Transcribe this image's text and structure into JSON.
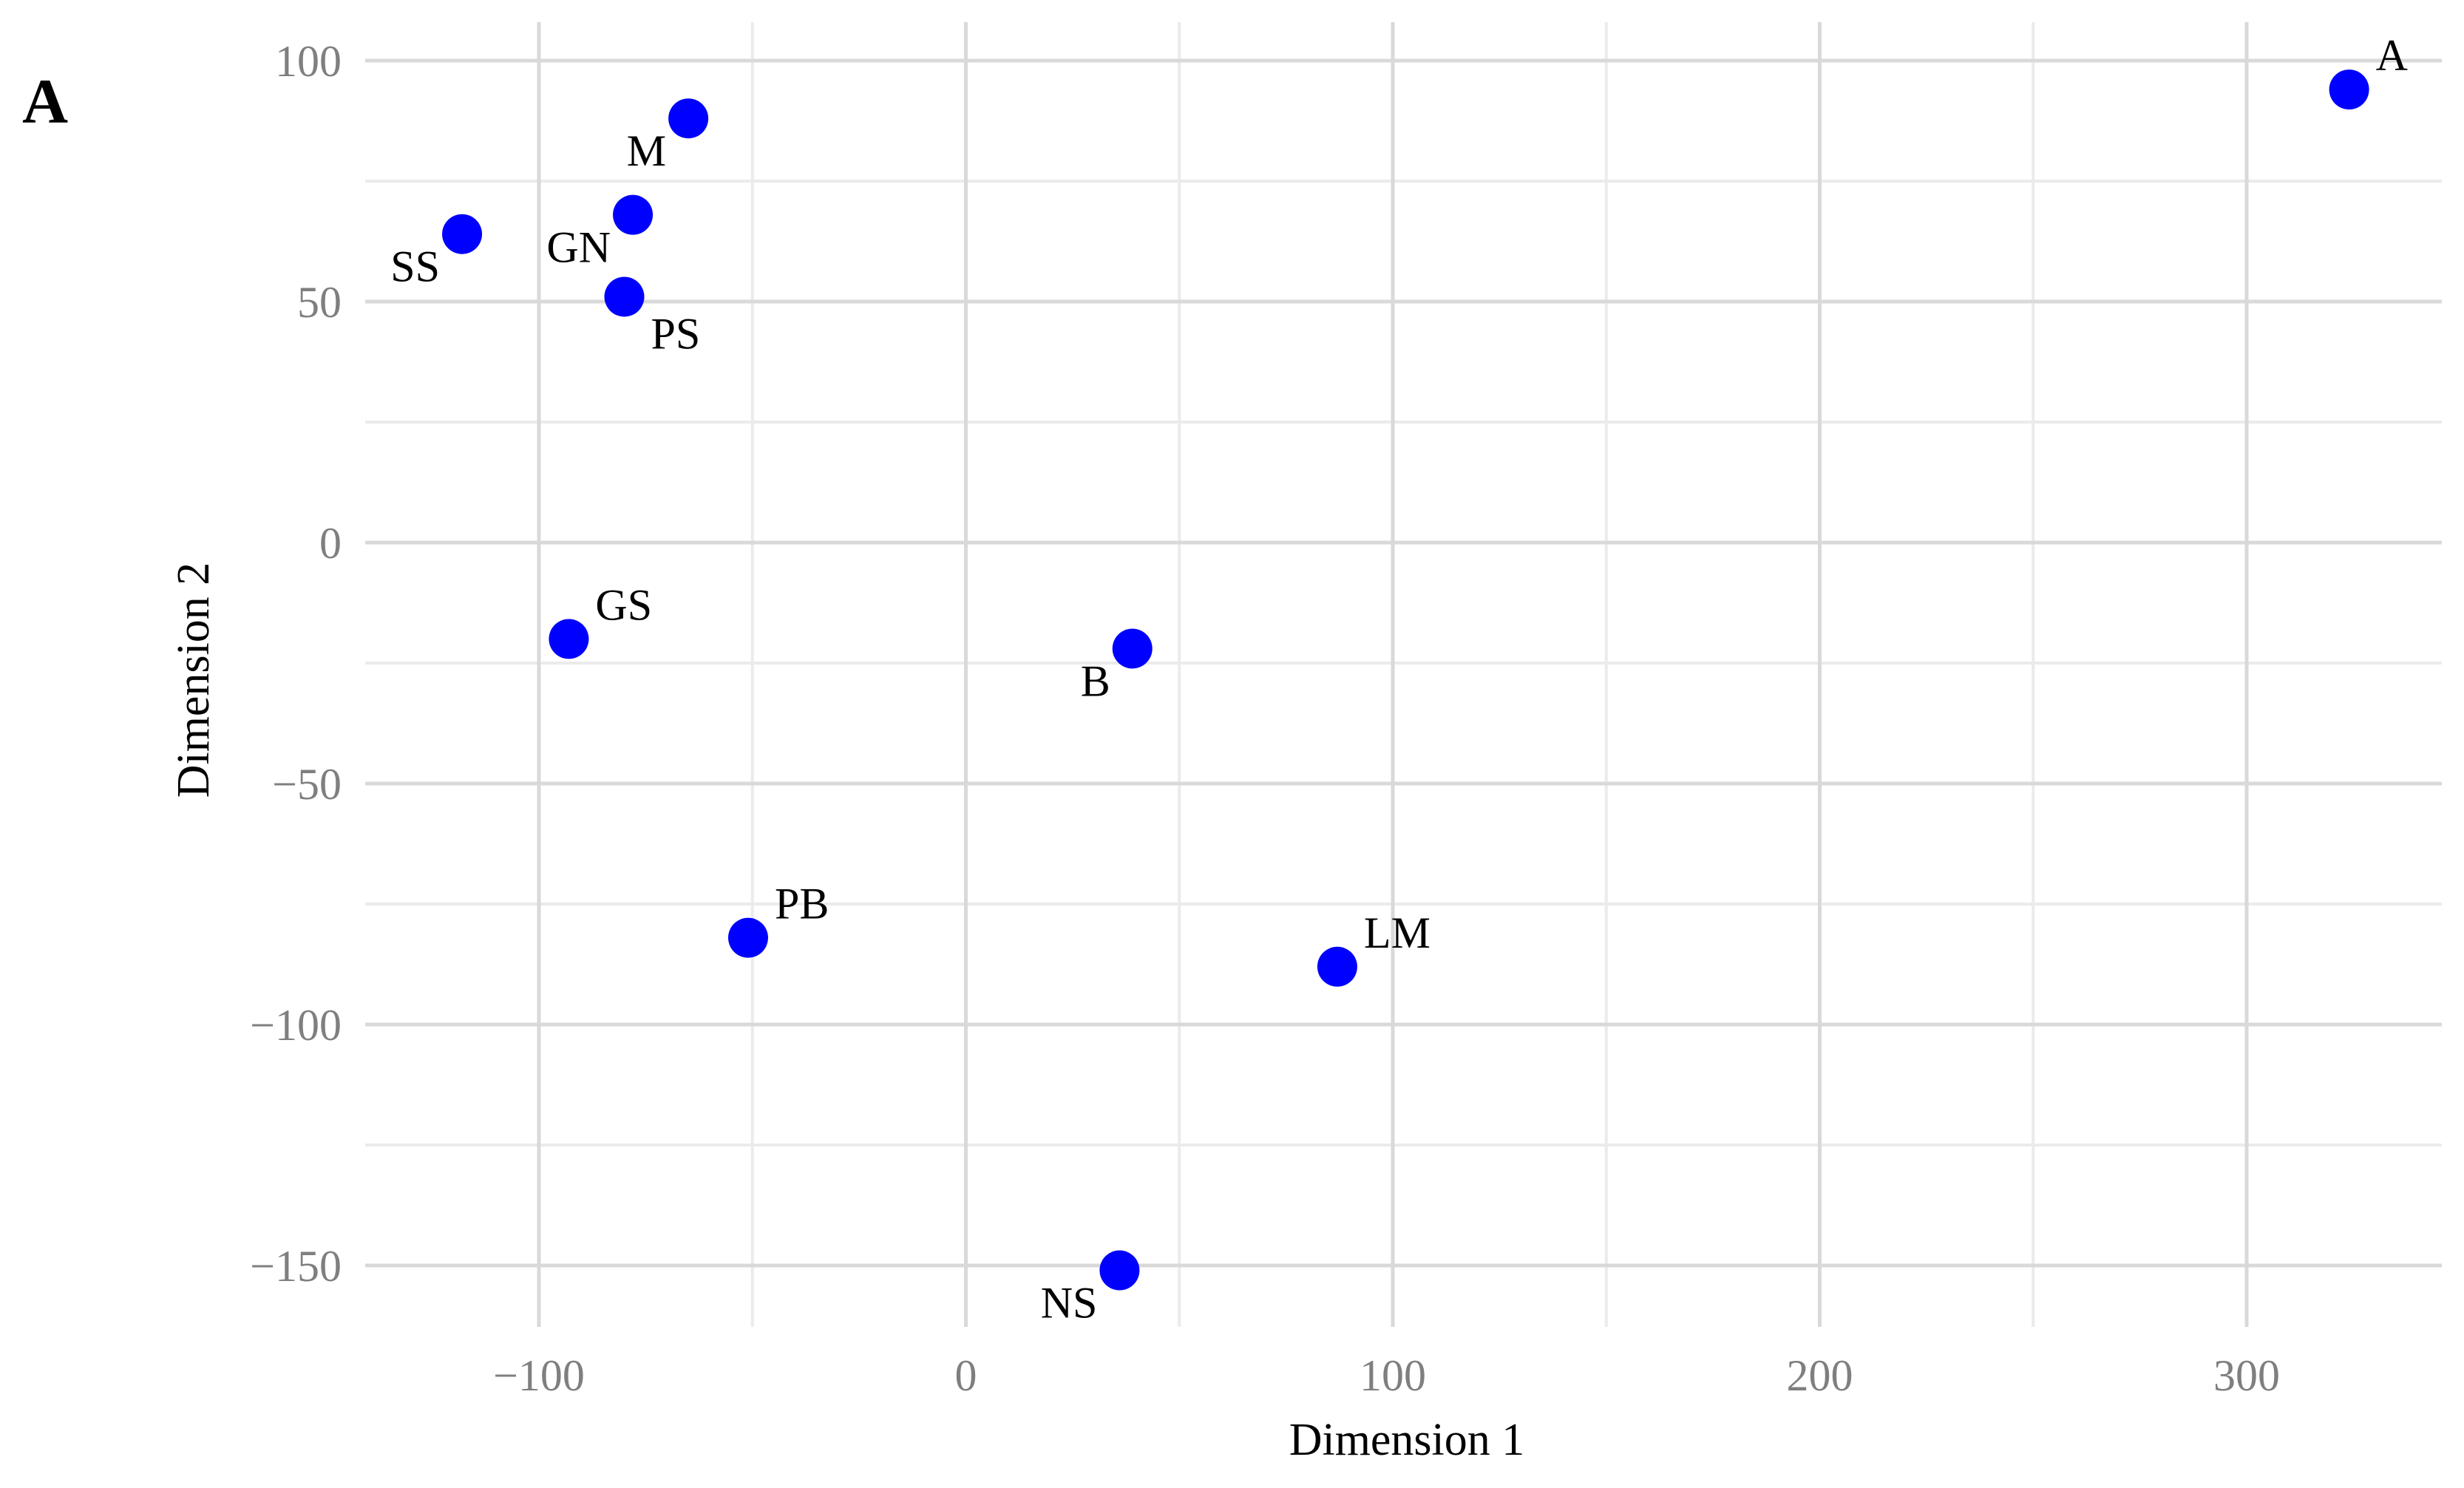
{
  "chart_data": {
    "type": "scatter",
    "panel_label": "A",
    "xlabel": "Dimension 1",
    "ylabel": "Dimension 2",
    "xlim": [
      -140,
      345
    ],
    "ylim": [
      -163,
      104
    ],
    "x_major_ticks": [
      -100,
      0,
      100,
      200,
      300
    ],
    "x_minor_ticks": [
      -50,
      50,
      150,
      250
    ],
    "y_major_ticks": [
      100,
      50,
      0,
      -50,
      -100,
      -150
    ],
    "y_minor_ticks": [
      75,
      25,
      -25,
      -75,
      -125
    ],
    "x_tick_labels": [
      "−100",
      "0",
      "100",
      "200",
      "300"
    ],
    "y_tick_labels": [
      "100",
      "50",
      "0",
      "−50",
      "−100",
      "−150"
    ],
    "grid": true,
    "point_color": "#0000ff",
    "points": [
      {
        "label": "A",
        "x": 324,
        "y": 94,
        "label_pos": "upper-right"
      },
      {
        "label": "M",
        "x": -65,
        "y": 88,
        "label_pos": "lower-left"
      },
      {
        "label": "SS",
        "x": -118,
        "y": 64,
        "label_pos": "lower-left"
      },
      {
        "label": "GN",
        "x": -78,
        "y": 68,
        "label_pos": "lower-left"
      },
      {
        "label": "PS",
        "x": -80,
        "y": 51,
        "label_pos": "lower-right"
      },
      {
        "label": "GS",
        "x": -93,
        "y": -20,
        "label_pos": "upper-right"
      },
      {
        "label": "B",
        "x": 39,
        "y": -22,
        "label_pos": "lower-left"
      },
      {
        "label": "PB",
        "x": -51,
        "y": -82,
        "label_pos": "upper-right"
      },
      {
        "label": "LM",
        "x": 87,
        "y": -88,
        "label_pos": "upper-right"
      },
      {
        "label": "NS",
        "x": 36,
        "y": -151,
        "label_pos": "lower-left"
      }
    ]
  }
}
